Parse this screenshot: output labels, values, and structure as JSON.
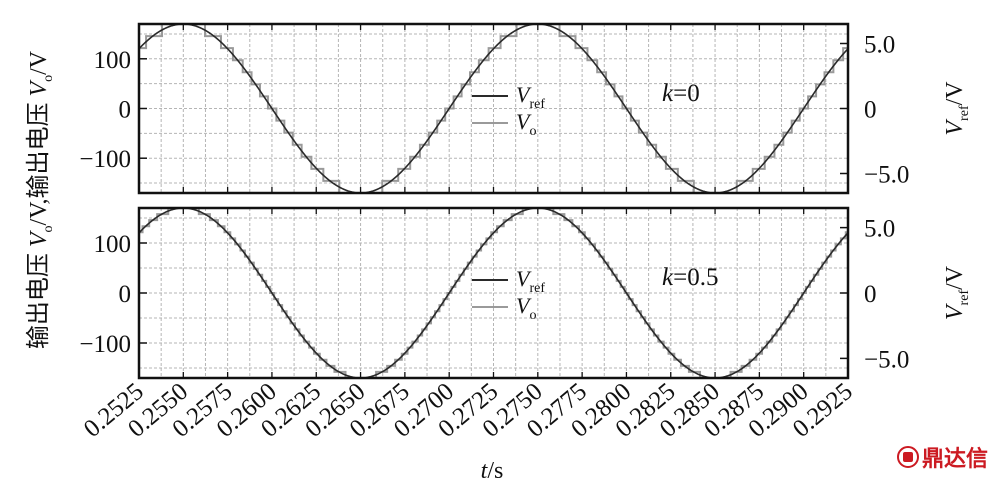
{
  "chart_data": [
    {
      "type": "line",
      "panel": "top",
      "annotation": "k=0",
      "annotation_k": "k",
      "annotation_val": "=0",
      "x": {
        "label_var": "t",
        "label_unit": "/s",
        "lim": [
          0.2525,
          0.2925
        ]
      },
      "y_left": {
        "label_prefix": "输出电压 ",
        "label_var": "V",
        "label_sub": "o",
        "label_unit": "/V",
        "lim": [
          -170,
          170
        ],
        "ticks": [
          100,
          0,
          -100
        ],
        "tick_labels": [
          "100",
          "0",
          "−100"
        ]
      },
      "y_right": {
        "label_var": "V",
        "label_sub": "ref",
        "label_unit": "/V",
        "lim": [
          -6.5,
          6.5
        ],
        "ticks": [
          5.0,
          0,
          -5.0
        ],
        "tick_labels": [
          "5.0",
          "0",
          "−5.0"
        ]
      },
      "series": [
        {
          "name": "V_ref",
          "name_var": "V",
          "name_sub": "ref",
          "amplitude": 170,
          "frequency_hz": 50,
          "peak_time": 0.255,
          "color": "#2a2a2a"
        },
        {
          "name": "V_o",
          "name_var": "V",
          "name_sub": "o",
          "amplitude": 170,
          "frequency_hz": 50,
          "peak_time": 0.255,
          "step_levels": 7,
          "color": "#9a9a9a"
        }
      ]
    },
    {
      "type": "line",
      "panel": "bottom",
      "annotation": "k=0.5",
      "annotation_k": "k",
      "annotation_val": "=0.5",
      "x": {
        "label_var": "t",
        "label_unit": "/s",
        "lim": [
          0.2525,
          0.2925
        ]
      },
      "y_left": {
        "label_prefix": "输出电压 ",
        "label_var": "V",
        "label_sub": "o",
        "label_unit": "/V",
        "lim": [
          -170,
          170
        ],
        "ticks": [
          100,
          0,
          -100
        ],
        "tick_labels": [
          "100",
          "0",
          "−100"
        ]
      },
      "y_right": {
        "label_var": "V",
        "label_sub": "ref",
        "label_unit": "/V",
        "lim": [
          -6.5,
          6.5
        ],
        "ticks": [
          5.0,
          0,
          -5.0
        ],
        "tick_labels": [
          "5.0",
          "0",
          "−5.0"
        ]
      },
      "series": [
        {
          "name": "V_ref",
          "name_var": "V",
          "name_sub": "ref",
          "amplitude": 170,
          "frequency_hz": 50,
          "peak_time": 0.255,
          "color": "#2a2a2a"
        },
        {
          "name": "V_o",
          "name_var": "V",
          "name_sub": "o",
          "amplitude": 170,
          "frequency_hz": 50,
          "peak_time": 0.255,
          "step_levels": 14,
          "color": "#9a9a9a"
        }
      ]
    }
  ],
  "shared_x_ticks": [
    "0.2525",
    "0.2550",
    "0.2575",
    "0.2600",
    "0.2625",
    "0.2650",
    "0.2675",
    "0.2700",
    "0.2725",
    "0.2750",
    "0.2775",
    "0.2800",
    "0.2825",
    "0.2850",
    "0.2875",
    "0.2900",
    "0.2925"
  ],
  "shared_x_tick_values": [
    0.2525,
    0.255,
    0.2575,
    0.26,
    0.2625,
    0.265,
    0.2675,
    0.27,
    0.2725,
    0.275,
    0.2775,
    0.28,
    0.2825,
    0.285,
    0.2875,
    0.29,
    0.2925
  ],
  "y_left_label_full": "输出电压 Vo/V,输出电压 Vo/V",
  "watermark": {
    "text": "鼎达信",
    "color": "#cc1a22"
  },
  "colors": {
    "grid": "#b5b5b5",
    "frame": "#111111",
    "ref_line": "#2a2a2a",
    "out_line": "#9a9a9a"
  }
}
